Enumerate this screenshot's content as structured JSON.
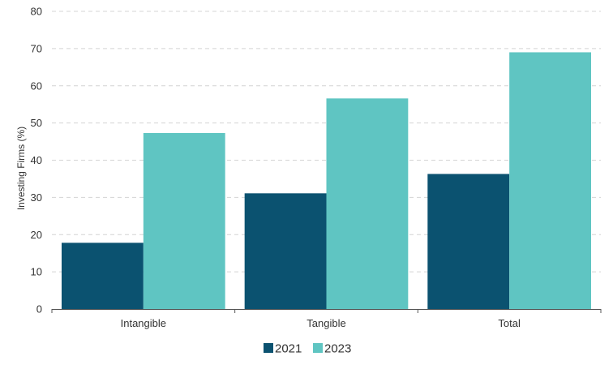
{
  "chart_data": {
    "type": "bar",
    "categories": [
      "Intangible",
      "Tangible",
      "Total"
    ],
    "series": [
      {
        "name": "2021",
        "color": "#0b5270",
        "values": [
          17.8,
          31.1,
          36.3
        ]
      },
      {
        "name": "2023",
        "color": "#5fc5c2",
        "values": [
          47.3,
          56.6,
          69.0
        ]
      }
    ],
    "ylabel": "Investing Firms (%)",
    "xlabel": "",
    "ylim": [
      0,
      80
    ],
    "yticks": [
      0,
      10,
      20,
      30,
      40,
      50,
      60,
      70,
      80
    ],
    "grid": true,
    "legend_position": "bottom-center"
  }
}
